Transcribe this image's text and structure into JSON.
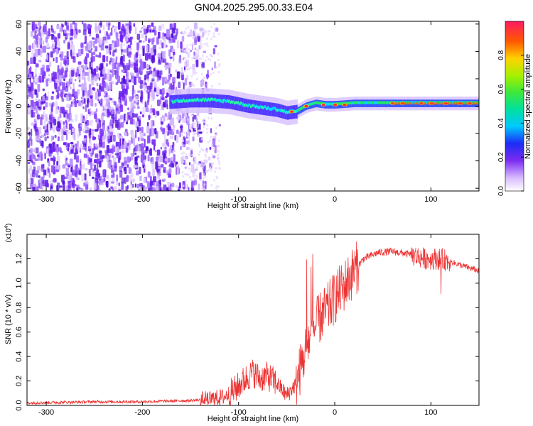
{
  "title": "GN04.2025.295.00.33.E04",
  "chart_data": [
    {
      "type": "heatmap",
      "xlabel": "Height of straight line (km)",
      "ylabel": "Frequency (Hz)",
      "xlim": [
        -320,
        150
      ],
      "ylim": [
        -62,
        62
      ],
      "xticks": [
        -300,
        -200,
        -100,
        0,
        100
      ],
      "yticks": [
        -60,
        -40,
        -20,
        0,
        20,
        40,
        60
      ],
      "ridge": {
        "x": [
          -170,
          -150,
          -130,
          -110,
          -90,
          -80,
          -70,
          -60,
          -50,
          -40,
          -30,
          -20,
          -10,
          0,
          20,
          50,
          80,
          100,
          120,
          150
        ],
        "freq": [
          3,
          4,
          4,
          3,
          0,
          -1,
          -2,
          -3,
          -5,
          -4,
          0,
          2,
          1,
          1,
          2,
          2,
          2,
          2,
          2,
          2
        ]
      },
      "colorbar": {
        "label": "Normalized spectral amplitude",
        "ticks": [
          0.0,
          0.2,
          0.4,
          0.6,
          0.8
        ],
        "range": [
          0,
          1
        ]
      }
    },
    {
      "type": "line",
      "xlabel": "Height of straight line (km)",
      "ylabel": "SNR (10 * v/v)",
      "scale_label": "(x10",
      "scale_exponent": "4",
      "scale_suffix": ")",
      "xlim": [
        -320,
        150
      ],
      "ylim": [
        0,
        1.4
      ],
      "xticks": [
        -300,
        -200,
        -100,
        0,
        100
      ],
      "yticks": [
        0.0,
        0.2,
        0.4,
        0.6,
        0.8,
        1.0,
        1.2
      ],
      "ytick_labels": [
        "0.0",
        "0.2",
        "0.4",
        "0.6",
        "0.8",
        "1.0",
        "1.2"
      ],
      "series": [
        {
          "name": "SNR",
          "color": "#ee3333",
          "x": [
            -320,
            -250,
            -200,
            -150,
            -130,
            -115,
            -105,
            -95,
            -85,
            -78,
            -70,
            -60,
            -50,
            -40,
            -33,
            -28,
            -22,
            -15,
            -8,
            0,
            10,
            20,
            30,
            45,
            60,
            75,
            85,
            95,
            105,
            115,
            130,
            150
          ],
          "values": [
            0.02,
            0.03,
            0.03,
            0.04,
            0.05,
            0.07,
            0.12,
            0.2,
            0.27,
            0.22,
            0.24,
            0.18,
            0.08,
            0.18,
            0.38,
            0.52,
            0.62,
            0.72,
            0.78,
            0.88,
            0.98,
            1.1,
            1.2,
            1.25,
            1.26,
            1.24,
            1.22,
            1.2,
            1.2,
            1.19,
            1.15,
            1.1
          ]
        }
      ]
    }
  ]
}
